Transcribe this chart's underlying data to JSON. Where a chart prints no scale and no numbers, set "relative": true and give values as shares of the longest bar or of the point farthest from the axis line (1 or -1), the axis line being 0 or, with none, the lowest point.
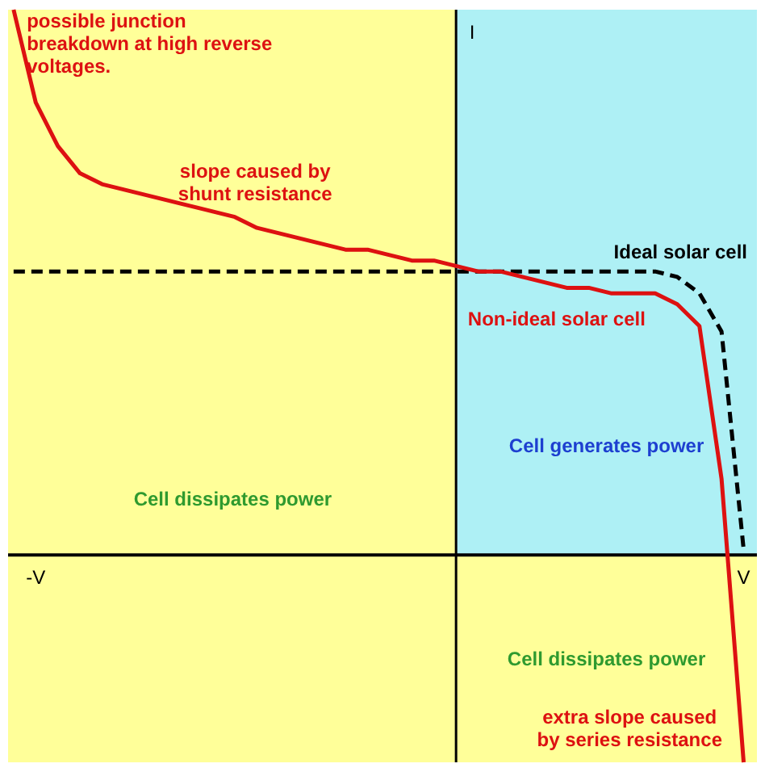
{
  "chart_data": {
    "type": "line",
    "relative": true,
    "ylabel": "I",
    "categories": [
      null,
      "-V",
      null,
      null,
      null,
      null,
      null,
      null,
      null,
      null,
      null,
      null,
      null,
      null,
      null,
      null,
      null,
      null,
      null,
      null,
      null,
      null,
      null,
      null,
      null,
      null,
      null,
      null,
      null,
      null,
      null,
      null,
      null,
      "V"
    ],
    "series": [
      {
        "name": "Ideal solar cell",
        "color": "#000000",
        "line_style": "dashed",
        "values": [
          0.52,
          0.52,
          0.52,
          0.52,
          0.52,
          0.52,
          0.52,
          0.52,
          0.52,
          0.52,
          0.52,
          0.52,
          0.52,
          0.52,
          0.52,
          0.52,
          0.52,
          0.52,
          0.52,
          0.52,
          0.52,
          0.52,
          0.52,
          0.52,
          0.52,
          0.52,
          0.52,
          0.52,
          0.52,
          0.52,
          0.51,
          0.48,
          0.41,
          0.01
        ]
      },
      {
        "name": "Non-ideal solar cell",
        "color": "#dd1111",
        "line_style": "solid",
        "values": [
          1.0,
          0.83,
          0.75,
          0.7,
          0.68,
          0.67,
          0.66,
          0.65,
          0.64,
          0.63,
          0.62,
          0.6,
          0.59,
          0.58,
          0.57,
          0.56,
          0.56,
          0.55,
          0.54,
          0.54,
          0.53,
          0.52,
          0.52,
          0.51,
          0.5,
          0.49,
          0.49,
          0.48,
          0.48,
          0.48,
          0.46,
          0.42,
          0.14,
          -0.38
        ]
      }
    ],
    "bands": [
      {
        "axis": "y",
        "from": 0,
        "to": 1.0,
        "color": "#aef0f5",
        "label": "Cell generates power"
      },
      {
        "axis": "y",
        "from": -0.38,
        "to": 0,
        "color": "#ffff99",
        "label": "Cell dissipates power"
      }
    ],
    "annotations": [
      "possible junction\nbreakdown at high reverse\nvoltages.",
      "slope caused by\nshunt resistance",
      "extra slope caused\nby series resistance",
      "Cell dissipates power"
    ]
  }
}
